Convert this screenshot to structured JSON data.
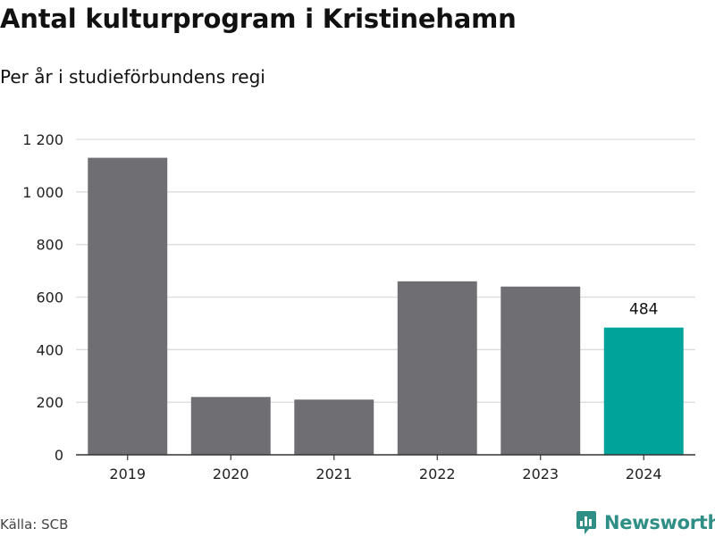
{
  "header": {
    "title": "Antal kulturprogram i Kristinehamn",
    "subtitle": "Per år i studieförbundens regi"
  },
  "footer": {
    "source": "Källa: SCB",
    "brand": "Newsworthy"
  },
  "colors": {
    "bar": "#6f6e73",
    "highlight": "#00a39a",
    "grid": "#dcdcdc",
    "axis": "#333333",
    "brand": "#2f8f86"
  },
  "chart_data": {
    "type": "bar",
    "categories": [
      "2019",
      "2020",
      "2021",
      "2022",
      "2023",
      "2024"
    ],
    "values": [
      1130,
      220,
      210,
      660,
      640,
      484
    ],
    "highlight_index": 5,
    "data_labels": [
      {
        "index": 5,
        "text": "484"
      }
    ],
    "title": "Antal kulturprogram i Kristinehamn",
    "subtitle": "Per år i studieförbundens regi",
    "xlabel": "",
    "ylabel": "",
    "ylim": [
      0,
      1200
    ],
    "yticks": [
      0,
      200,
      400,
      600,
      800,
      1000,
      1200
    ],
    "ytick_labels": [
      "0",
      "200",
      "400",
      "600",
      "800",
      "1 000",
      "1 200"
    ],
    "grid": true,
    "legend": "none"
  }
}
